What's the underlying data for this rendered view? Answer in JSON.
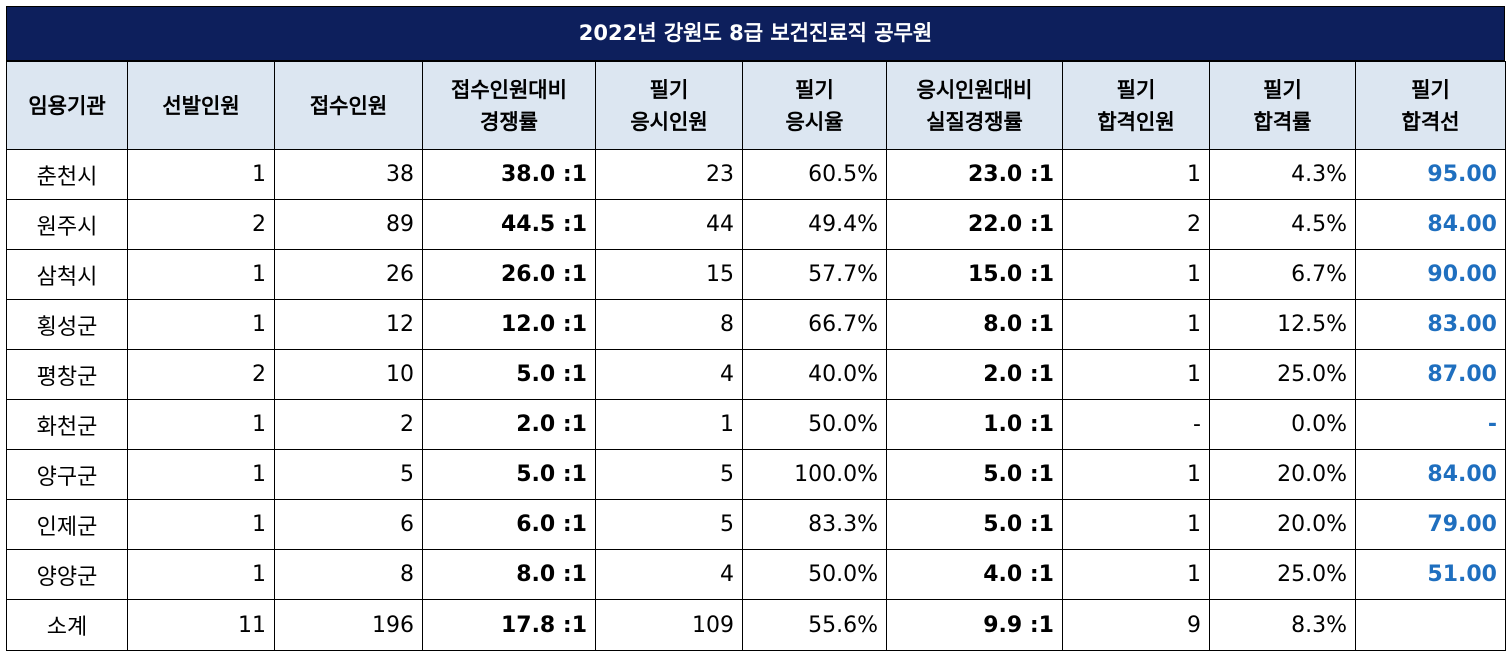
{
  "title": "2022년 강원도 8급 보건진료직 공무원",
  "headers": [
    [
      "임용기관"
    ],
    [
      "선발인원"
    ],
    [
      "접수인원"
    ],
    [
      "접수인원대비",
      "경쟁률"
    ],
    [
      "필기",
      "응시인원"
    ],
    [
      "필기",
      "응시율"
    ],
    [
      "응시인원대비",
      "실질경쟁률"
    ],
    [
      "필기",
      "합격인원"
    ],
    [
      "필기",
      "합격률"
    ],
    [
      "필기",
      "합격선"
    ]
  ],
  "rows": [
    [
      "춘천시",
      "1",
      "38",
      "38.0 :1",
      "23",
      "60.5%",
      "23.0 :1",
      "1",
      "4.3%",
      "95.00"
    ],
    [
      "원주시",
      "2",
      "89",
      "44.5 :1",
      "44",
      "49.4%",
      "22.0 :1",
      "2",
      "4.5%",
      "84.00"
    ],
    [
      "삼척시",
      "1",
      "26",
      "26.0 :1",
      "15",
      "57.7%",
      "15.0 :1",
      "1",
      "6.7%",
      "90.00"
    ],
    [
      "횡성군",
      "1",
      "12",
      "12.0 :1",
      "8",
      "66.7%",
      "8.0 :1",
      "1",
      "12.5%",
      "83.00"
    ],
    [
      "평창군",
      "2",
      "10",
      "5.0 :1",
      "4",
      "40.0%",
      "2.0 :1",
      "1",
      "25.0%",
      "87.00"
    ],
    [
      "화천군",
      "1",
      "2",
      "2.0 :1",
      "1",
      "50.0%",
      "1.0 :1",
      "-",
      "0.0%",
      "-"
    ],
    [
      "양구군",
      "1",
      "5",
      "5.0 :1",
      "5",
      "100.0%",
      "5.0 :1",
      "1",
      "20.0%",
      "84.00"
    ],
    [
      "인제군",
      "1",
      "6",
      "6.0 :1",
      "5",
      "83.3%",
      "5.0 :1",
      "1",
      "20.0%",
      "79.00"
    ],
    [
      "양양군",
      "1",
      "8",
      "8.0 :1",
      "4",
      "50.0%",
      "4.0 :1",
      "1",
      "25.0%",
      "51.00"
    ],
    [
      "소계",
      "11",
      "196",
      "17.8 :1",
      "109",
      "55.6%",
      "9.9 :1",
      "9",
      "8.3%",
      ""
    ]
  ],
  "colors": {
    "title_bg": "#0d1f5c",
    "header_bg": "#dce6f1",
    "cutoff_text": "#1f6fbf"
  }
}
